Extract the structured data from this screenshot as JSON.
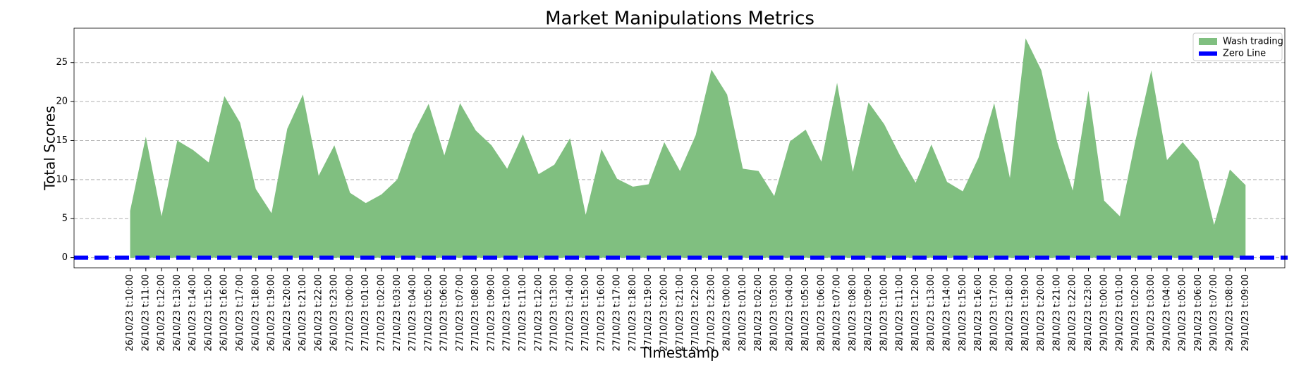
{
  "chart_data": {
    "type": "area",
    "title": "Market Manipulations Metrics",
    "x_label": "Timestamp",
    "y_label": "Total Scores",
    "categories": [
      "26/10/23 t:10:00",
      "26/10/23 t:11:00",
      "26/10/23 t:12:00",
      "26/10/23 t:13:00",
      "26/10/23 t:14:00",
      "26/10/23 t:15:00",
      "26/10/23 t:16:00",
      "26/10/23 t:17:00",
      "26/10/23 t:18:00",
      "26/10/23 t:19:00",
      "26/10/23 t:20:00",
      "26/10/23 t:21:00",
      "26/10/23 t:22:00",
      "26/10/23 t:23:00",
      "27/10/23 t:00:00",
      "27/10/23 t:01:00",
      "27/10/23 t:02:00",
      "27/10/23 t:03:00",
      "27/10/23 t:04:00",
      "27/10/23 t:05:00",
      "27/10/23 t:06:00",
      "27/10/23 t:07:00",
      "27/10/23 t:08:00",
      "27/10/23 t:09:00",
      "27/10/23 t:10:00",
      "27/10/23 t:11:00",
      "27/10/23 t:12:00",
      "27/10/23 t:13:00",
      "27/10/23 t:14:00",
      "27/10/23 t:15:00",
      "27/10/23 t:16:00",
      "27/10/23 t:17:00",
      "27/10/23 t:18:00",
      "27/10/23 t:19:00",
      "27/10/23 t:20:00",
      "27/10/23 t:21:00",
      "27/10/23 t:22:00",
      "27/10/23 t:23:00",
      "28/10/23 t:00:00",
      "28/10/23 t:01:00",
      "28/10/23 t:02:00",
      "28/10/23 t:03:00",
      "28/10/23 t:04:00",
      "28/10/23 t:05:00",
      "28/10/23 t:06:00",
      "28/10/23 t:07:00",
      "28/10/23 t:08:00",
      "28/10/23 t:09:00",
      "28/10/23 t:10:00",
      "28/10/23 t:11:00",
      "28/10/23 t:12:00",
      "28/10/23 t:13:00",
      "28/10/23 t:14:00",
      "28/10/23 t:15:00",
      "28/10/23 t:16:00",
      "28/10/23 t:17:00",
      "28/10/23 t:18:00",
      "28/10/23 t:19:00",
      "28/10/23 t:20:00",
      "28/10/23 t:21:00",
      "28/10/23 t:22:00",
      "28/10/23 t:23:00",
      "29/10/23 t:00:00",
      "29/10/23 t:01:00",
      "29/10/23 t:02:00",
      "29/10/23 t:03:00",
      "29/10/23 t:04:00",
      "29/10/23 t:05:00",
      "29/10/23 t:06:00",
      "29/10/23 t:07:00",
      "29/10/23 t:08:00",
      "29/10/23 t:09:00"
    ],
    "series": [
      {
        "name": "Wash trading",
        "color": "#80bf80",
        "values": [
          6,
          15.5,
          5.3,
          15,
          13.8,
          12.2,
          20.7,
          17.3,
          8.8,
          5.7,
          16.5,
          20.9,
          10.5,
          14.4,
          8.3,
          7,
          8.1,
          10,
          15.8,
          19.7,
          13.1,
          19.8,
          16.3,
          14.4,
          11.4,
          15.8,
          10.7,
          11.9,
          15.3,
          5.5,
          13.9,
          10.1,
          9.1,
          9.4,
          14.8,
          11.1,
          15.7,
          24.1,
          20.9,
          11.4,
          11.1,
          7.9,
          14.9,
          16.4,
          12.3,
          22.4,
          11,
          19.9,
          17.1,
          13.1,
          9.6,
          14.5,
          9.7,
          8.5,
          12.8,
          19.8,
          10.2,
          28.1,
          24,
          14.9,
          8.6,
          21.4,
          7.3,
          5.3,
          15.1,
          24,
          12.5,
          14.8,
          12.4,
          4.2,
          11.3,
          9.3
        ]
      }
    ],
    "zero_line": {
      "name": "Zero Line",
      "value": 0,
      "color": "blue"
    },
    "ylim": [
      -1.3,
      29.4
    ],
    "yticks": [
      0,
      5,
      10,
      15,
      20,
      25
    ],
    "grid": true,
    "legend": "upper right"
  }
}
